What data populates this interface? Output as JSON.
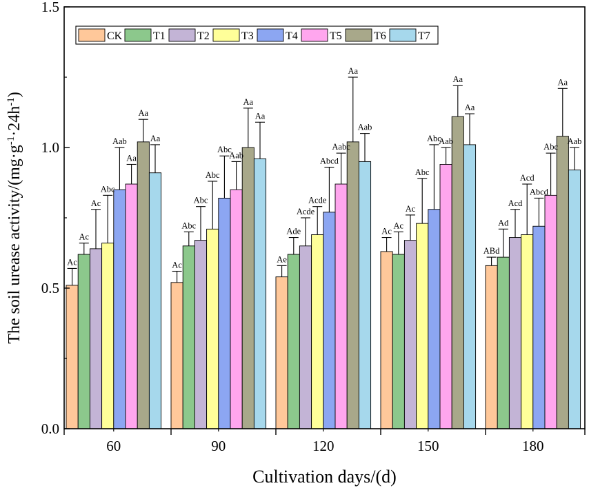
{
  "chart_data": {
    "type": "bar",
    "title": "",
    "xlabel": "Cultivation days/(d)",
    "ylabel_parts": [
      "The soil urease activity/(mg·g",
      "-1",
      "·24h",
      "-1",
      ")"
    ],
    "ylim": [
      0.0,
      1.5
    ],
    "yticks": [
      "0.0",
      "0.5",
      "1.0",
      "1.5"
    ],
    "categories": [
      "60",
      "90",
      "120",
      "150",
      "180"
    ],
    "legend_position": "top-left",
    "series": [
      {
        "name": "CK",
        "color": "#FFC89A",
        "values": [
          0.51,
          0.52,
          0.54,
          0.63,
          0.58
        ],
        "errors": [
          0.06,
          0.04,
          0.04,
          0.05,
          0.03
        ],
        "labels": [
          "Ac",
          "Ac",
          "Ae",
          "Ac",
          "ABd"
        ]
      },
      {
        "name": "T1",
        "color": "#8CC88C",
        "values": [
          0.62,
          0.65,
          0.62,
          0.62,
          0.61
        ],
        "errors": [
          0.04,
          0.05,
          0.06,
          0.08,
          0.1
        ],
        "labels": [
          "Ac",
          "Abc",
          "Ade",
          "Ac",
          "Ad"
        ]
      },
      {
        "name": "T2",
        "color": "#C3B4D6",
        "values": [
          0.64,
          0.67,
          0.65,
          0.67,
          0.68
        ],
        "errors": [
          0.14,
          0.12,
          0.1,
          0.09,
          0.1
        ],
        "labels": [
          "Ac",
          "Abc",
          "Acde",
          "Ac",
          "Acd"
        ]
      },
      {
        "name": "T3",
        "color": "#FFFF99",
        "values": [
          0.66,
          0.71,
          0.69,
          0.73,
          0.69
        ],
        "errors": [
          0.17,
          0.17,
          0.1,
          0.16,
          0.18
        ],
        "labels": [
          "Abc",
          "Abc",
          "Acde",
          "Abc",
          "Acd"
        ]
      },
      {
        "name": "T4",
        "color": "#8CA6F2",
        "values": [
          0.85,
          0.82,
          0.77,
          0.78,
          0.72
        ],
        "errors": [
          0.15,
          0.15,
          0.16,
          0.23,
          0.1
        ],
        "labels": [
          "Aab",
          "Abc",
          "Abcd",
          "Abc",
          "Abcd"
        ]
      },
      {
        "name": "T5",
        "color": "#FFA6EE",
        "values": [
          0.87,
          0.85,
          0.87,
          0.94,
          0.83
        ],
        "errors": [
          0.07,
          0.1,
          0.11,
          0.06,
          0.15
        ],
        "labels": [
          "Aa",
          "Aab",
          "Aabc",
          "Aab",
          "Abc"
        ]
      },
      {
        "name": "T6",
        "color": "#A8A88A",
        "values": [
          1.02,
          1.0,
          1.02,
          1.11,
          1.04
        ],
        "errors": [
          0.08,
          0.14,
          0.23,
          0.11,
          0.17
        ],
        "labels": [
          "Aa",
          "Aa",
          "Aa",
          "Aa",
          "Aa"
        ]
      },
      {
        "name": "T7",
        "color": "#A6D8EC",
        "values": [
          0.91,
          0.96,
          0.95,
          1.01,
          0.92
        ],
        "errors": [
          0.1,
          0.13,
          0.1,
          0.11,
          0.08
        ],
        "labels": [
          "Aa",
          "Aa",
          "Aab",
          "Aa",
          "Aab"
        ]
      }
    ]
  }
}
